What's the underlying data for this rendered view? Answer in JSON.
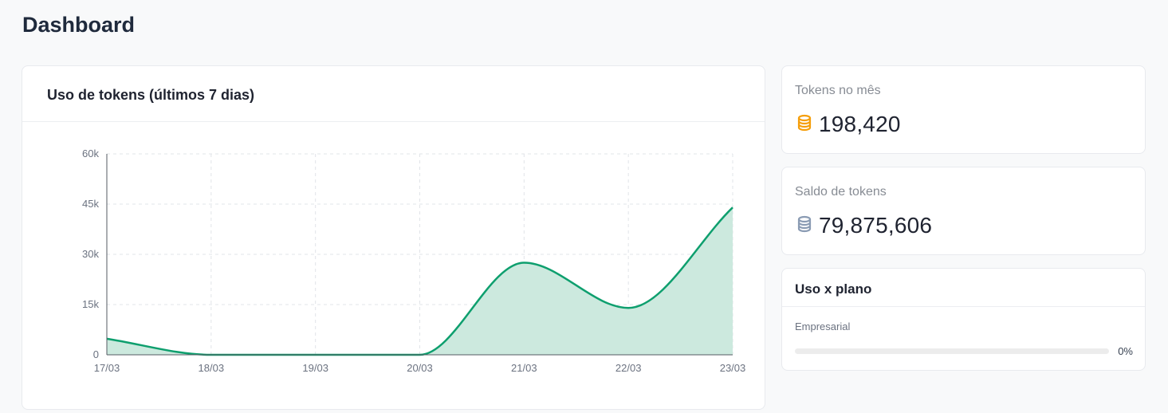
{
  "page": {
    "title": "Dashboard"
  },
  "chart_card": {
    "title": "Uso de tokens (últimos 7 dias)"
  },
  "chart_data": {
    "type": "area",
    "x": [
      "17/03",
      "18/03",
      "19/03",
      "20/03",
      "21/03",
      "22/03",
      "23/03"
    ],
    "values": [
      4800,
      0,
      0,
      0,
      27500,
      14000,
      44000
    ],
    "yticks": [
      "0",
      "15k",
      "30k",
      "45k",
      "60k"
    ],
    "ylim": [
      0,
      60000
    ],
    "grid": true,
    "line_color": "#0e9f6e",
    "fill_color": "#cce9de"
  },
  "stats": [
    {
      "label": "Tokens no mês",
      "value": "198,420",
      "icon": "coins-stack-icon",
      "icon_color": "#f59e0b"
    },
    {
      "label": "Saldo de tokens",
      "value": "79,875,606",
      "icon": "database-icon",
      "icon_color": "#8a9bb3"
    }
  ],
  "plan": {
    "title": "Uso x plano",
    "name": "Empresarial",
    "percent_label": "0%",
    "percent": 0,
    "bar_color": "#0e9f6e"
  }
}
